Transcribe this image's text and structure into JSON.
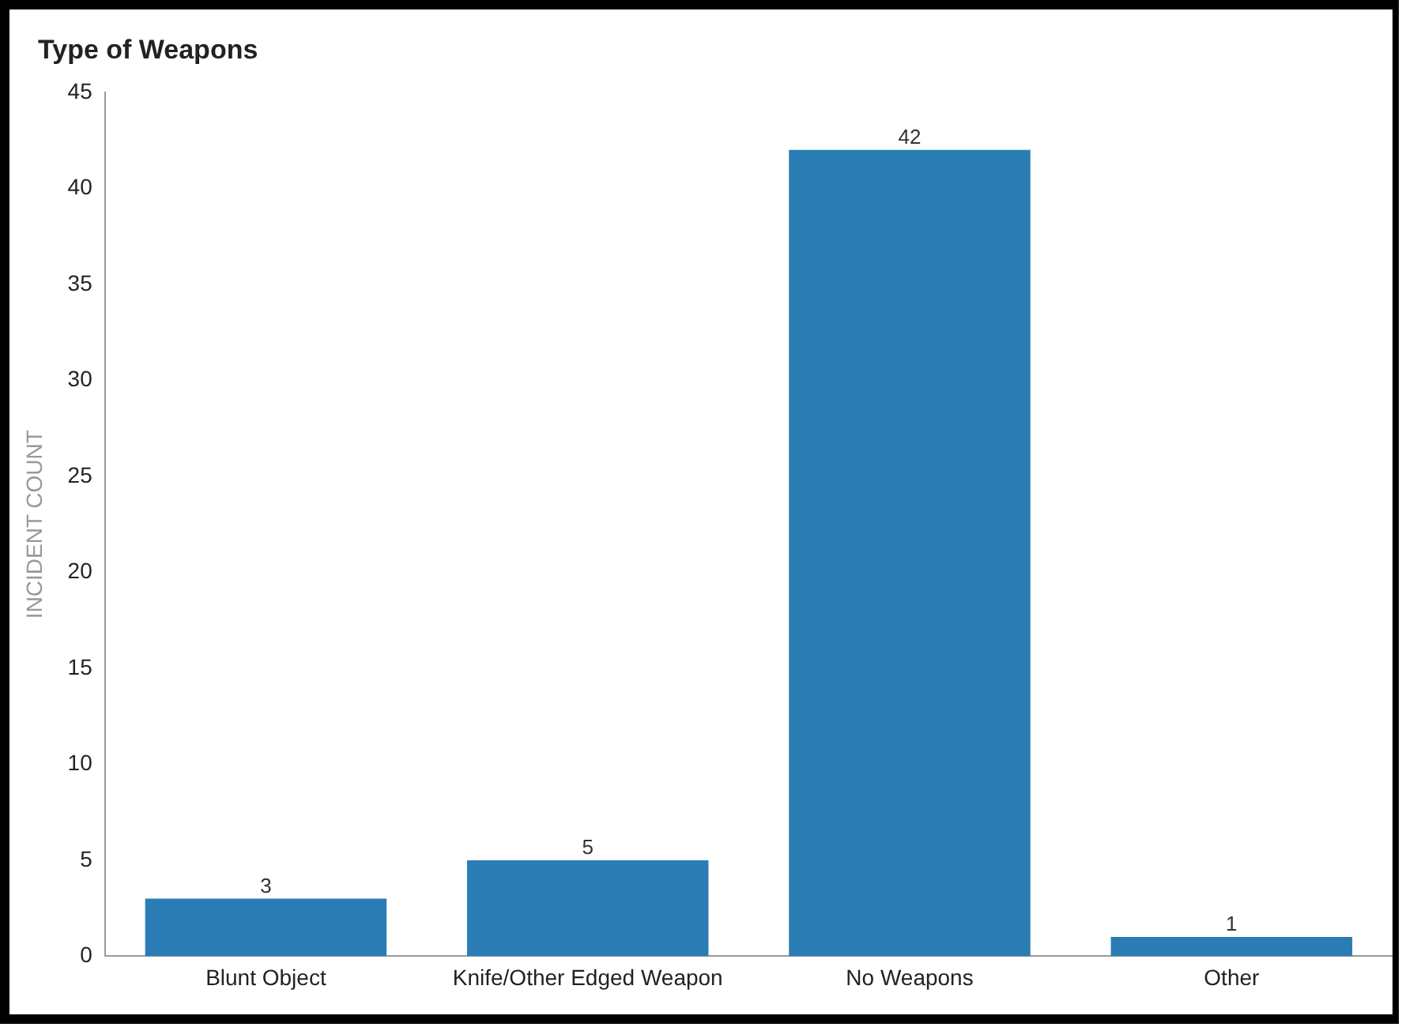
{
  "chart_data": {
    "type": "bar",
    "title": "Type of Weapons",
    "ylabel": "INCIDENT COUNT",
    "categories": [
      "Blunt Object",
      "Knife/Other Edged Weapon",
      "No Weapons",
      "Other"
    ],
    "values": [
      3,
      5,
      42,
      1
    ],
    "color": "#2a7db4",
    "ylim": [
      0,
      45
    ],
    "yticks": [
      0,
      5,
      10,
      15,
      20,
      25,
      30,
      35,
      40,
      45
    ],
    "grid": false,
    "data_labels": true
  }
}
